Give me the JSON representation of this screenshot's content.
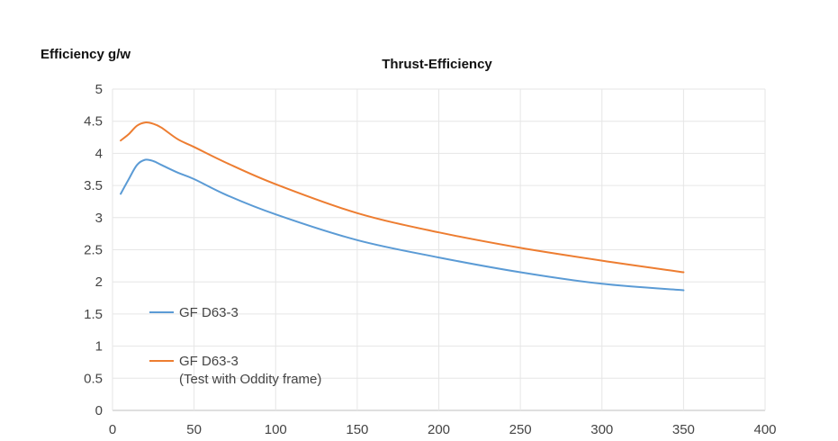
{
  "chart_data": {
    "type": "line",
    "title": "Thrust-Efficiency",
    "ylabel": "Efficiency g/w",
    "xlabel": "",
    "xlim": [
      0,
      400
    ],
    "ylim": [
      0,
      5
    ],
    "xticks": [
      0,
      50,
      100,
      150,
      200,
      250,
      300,
      350,
      400
    ],
    "yticks": [
      0,
      0.5,
      1,
      1.5,
      2,
      2.5,
      3,
      3.5,
      4,
      4.5,
      5
    ],
    "grid": true,
    "legend": "inside-lower-left",
    "series": [
      {
        "name": "GF D63-3",
        "color": "#5b9bd5",
        "points": [
          [
            5,
            3.37
          ],
          [
            10,
            3.6
          ],
          [
            15,
            3.82
          ],
          [
            20,
            3.9
          ],
          [
            25,
            3.88
          ],
          [
            30,
            3.82
          ],
          [
            40,
            3.7
          ],
          [
            50,
            3.6
          ],
          [
            70,
            3.35
          ],
          [
            100,
            3.05
          ],
          [
            150,
            2.65
          ],
          [
            200,
            2.38
          ],
          [
            250,
            2.15
          ],
          [
            300,
            1.97
          ],
          [
            350,
            1.87
          ]
        ]
      },
      {
        "name": "GF D63-3",
        "name_line2": "(Test with Oddity frame)",
        "color": "#ed7d31",
        "points": [
          [
            5,
            4.2
          ],
          [
            10,
            4.3
          ],
          [
            15,
            4.43
          ],
          [
            20,
            4.48
          ],
          [
            25,
            4.46
          ],
          [
            30,
            4.4
          ],
          [
            40,
            4.22
          ],
          [
            50,
            4.1
          ],
          [
            70,
            3.85
          ],
          [
            100,
            3.52
          ],
          [
            150,
            3.07
          ],
          [
            200,
            2.77
          ],
          [
            250,
            2.53
          ],
          [
            300,
            2.33
          ],
          [
            350,
            2.15
          ]
        ]
      }
    ]
  }
}
